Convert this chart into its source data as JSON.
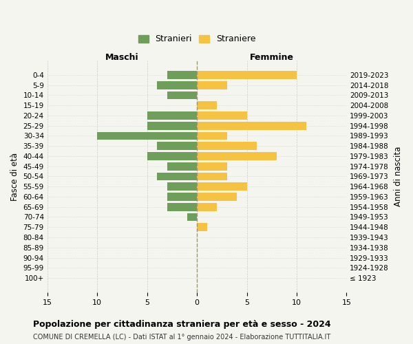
{
  "age_groups": [
    "100+",
    "95-99",
    "90-94",
    "85-89",
    "80-84",
    "75-79",
    "70-74",
    "65-69",
    "60-64",
    "55-59",
    "50-54",
    "45-49",
    "40-44",
    "35-39",
    "30-34",
    "25-29",
    "20-24",
    "15-19",
    "10-14",
    "5-9",
    "0-4"
  ],
  "birth_years": [
    "≤ 1923",
    "1924-1928",
    "1929-1933",
    "1934-1938",
    "1939-1943",
    "1944-1948",
    "1949-1953",
    "1954-1958",
    "1959-1963",
    "1964-1968",
    "1969-1973",
    "1974-1978",
    "1979-1983",
    "1984-1988",
    "1989-1993",
    "1994-1998",
    "1999-2003",
    "2004-2008",
    "2009-2013",
    "2014-2018",
    "2019-2023"
  ],
  "maschi": [
    0,
    0,
    0,
    0,
    0,
    0,
    1,
    3,
    3,
    3,
    4,
    3,
    5,
    4,
    10,
    5,
    5,
    0,
    3,
    4,
    3
  ],
  "femmine": [
    0,
    0,
    0,
    0,
    0,
    1,
    0,
    2,
    4,
    5,
    3,
    3,
    8,
    6,
    3,
    11,
    5,
    2,
    0,
    3,
    10
  ],
  "maschi_color": "#6e9e5a",
  "femmine_color": "#f5c242",
  "background_color": "#f5f5f0",
  "grid_color": "#cccccc",
  "title": "Popolazione per cittadinanza straniera per età e sesso - 2024",
  "subtitle": "COMUNE DI CREMELLA (LC) - Dati ISTAT al 1° gennaio 2024 - Elaborazione TUTTITALIA.IT",
  "xlabel_left": "Maschi",
  "xlabel_right": "Femmine",
  "ylabel_left": "Fasce di età",
  "ylabel_right": "Anni di nascita",
  "legend_maschi": "Stranieri",
  "legend_femmine": "Straniere",
  "xlim": 15,
  "bar_height": 0.8
}
